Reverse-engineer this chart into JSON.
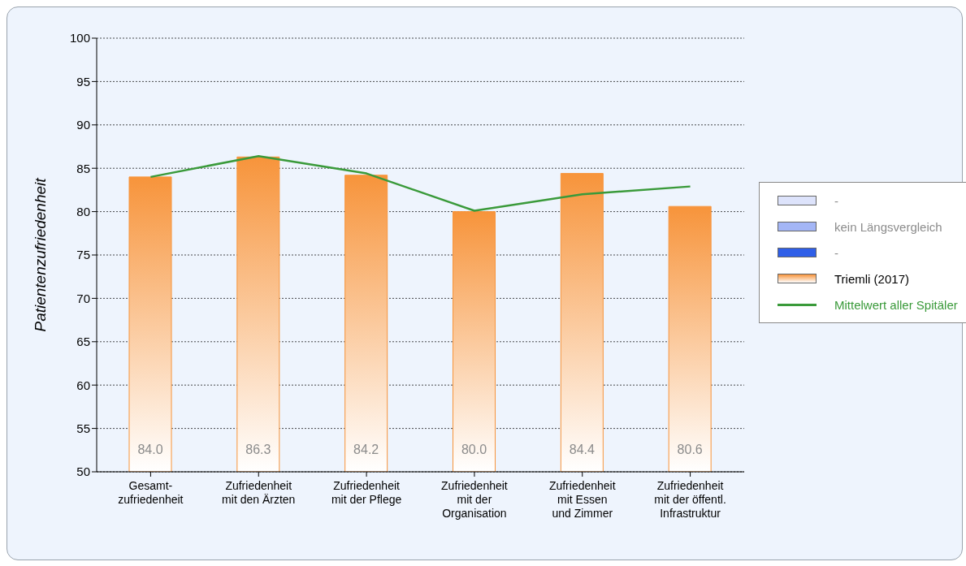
{
  "chart_data": {
    "type": "bar",
    "ylabel": "Patientenzufriedenheit",
    "categories": [
      "Gesamt-\nzufriedenheit",
      "Zufriedenheit\nmit den Ärzten",
      "Zufriedenheit\nmit der Pflege",
      "Zufriedenheit\nmit der\nOrganisation",
      "Zufriedenheit\nmit Essen\nund Zimmer",
      "Zufriedenheit\nmit der öffentl.\nInfrastruktur"
    ],
    "series": [
      {
        "name": "-",
        "color": "#dde3fb",
        "values": [
          null,
          null,
          null,
          null,
          null,
          null
        ]
      },
      {
        "name": "kein Längsvergleich",
        "color": "#a4b6f6",
        "values": [
          null,
          null,
          null,
          null,
          null,
          null
        ]
      },
      {
        "name": "-",
        "color": "#2f5fe8",
        "values": [
          null,
          null,
          null,
          null,
          null,
          null
        ]
      },
      {
        "name": "Triemli (2017)",
        "color": "#f7943b",
        "values": [
          84.0,
          86.3,
          84.2,
          80.0,
          84.4,
          80.6
        ],
        "value_labels": [
          "84.0",
          "86.3",
          "84.2",
          "80.0",
          "84.4",
          "80.6"
        ]
      },
      {
        "name": "Mittelwert aller Spitäler",
        "type": "line",
        "color": "#3a9a3a",
        "values": [
          84.0,
          86.4,
          84.4,
          80.1,
          82.0,
          82.9
        ]
      }
    ],
    "ylim": [
      50,
      100
    ],
    "yticks": [
      50,
      55,
      60,
      65,
      70,
      75,
      80,
      85,
      90,
      95,
      100
    ],
    "grid": "y",
    "legend": "right",
    "marker": "none"
  }
}
